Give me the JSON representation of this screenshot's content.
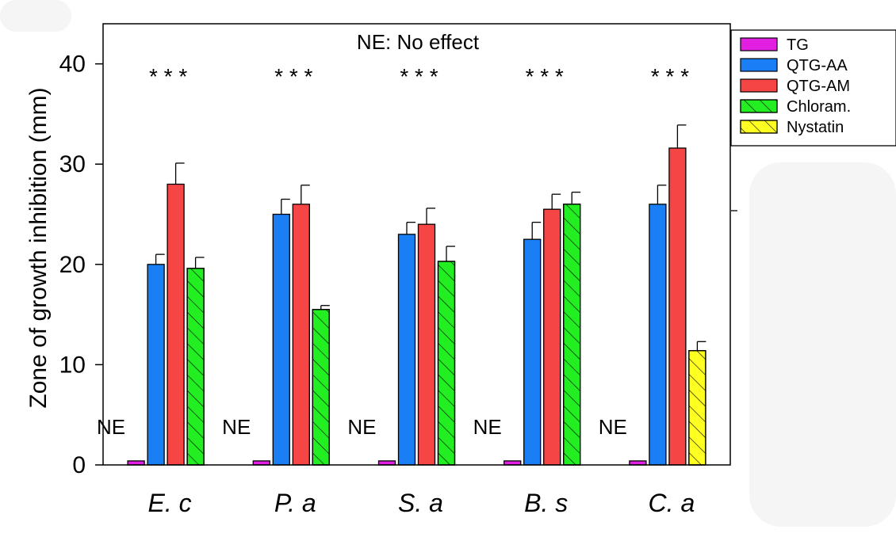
{
  "chart_data": {
    "type": "bar",
    "title": "",
    "annotation": "NE: No effect",
    "xlabel": "",
    "ylabel": "Zone of growth inhibition (mm)",
    "ylim": [
      0,
      44
    ],
    "yticks": [
      0,
      10,
      20,
      30,
      40
    ],
    "categories": [
      "E. c",
      "P. a",
      "S. a",
      "B. s",
      "C. a"
    ],
    "series": [
      {
        "name": "TG",
        "color": "#e11ee1",
        "hatch": false,
        "values": [
          0.4,
          0.4,
          0.4,
          0.4,
          0.4
        ],
        "errors": [
          null,
          null,
          null,
          null,
          null
        ]
      },
      {
        "name": "QTG-AA",
        "color": "#1a7ff5",
        "hatch": false,
        "values": [
          20.0,
          25.0,
          23.0,
          22.5,
          26.0
        ],
        "errors": [
          1.0,
          1.5,
          1.2,
          1.7,
          1.9
        ]
      },
      {
        "name": "QTG-AM",
        "color": "#f54545",
        "hatch": false,
        "values": [
          28.0,
          26.0,
          24.0,
          25.5,
          31.6
        ],
        "errors": [
          2.1,
          1.9,
          1.6,
          1.5,
          2.3
        ]
      },
      {
        "name": "Chloram.",
        "color": "#22ee22",
        "hatch": true,
        "values": [
          19.6,
          15.5,
          20.3,
          26.0,
          null
        ],
        "errors": [
          1.1,
          0.4,
          1.5,
          1.2,
          null
        ]
      },
      {
        "name": "Nystatin",
        "color": "#ffff22",
        "hatch": true,
        "values": [
          null,
          null,
          null,
          null,
          11.4
        ],
        "errors": [
          null,
          null,
          null,
          null,
          0.9
        ]
      }
    ],
    "ne_labels": [
      "NE",
      "NE",
      "NE",
      "NE",
      "NE"
    ],
    "significance": [
      "*  *  *",
      "*  *  *",
      "*  *  *",
      "*  *  *",
      "*  *  *"
    ],
    "legend_position": "top-right",
    "grid": false
  }
}
